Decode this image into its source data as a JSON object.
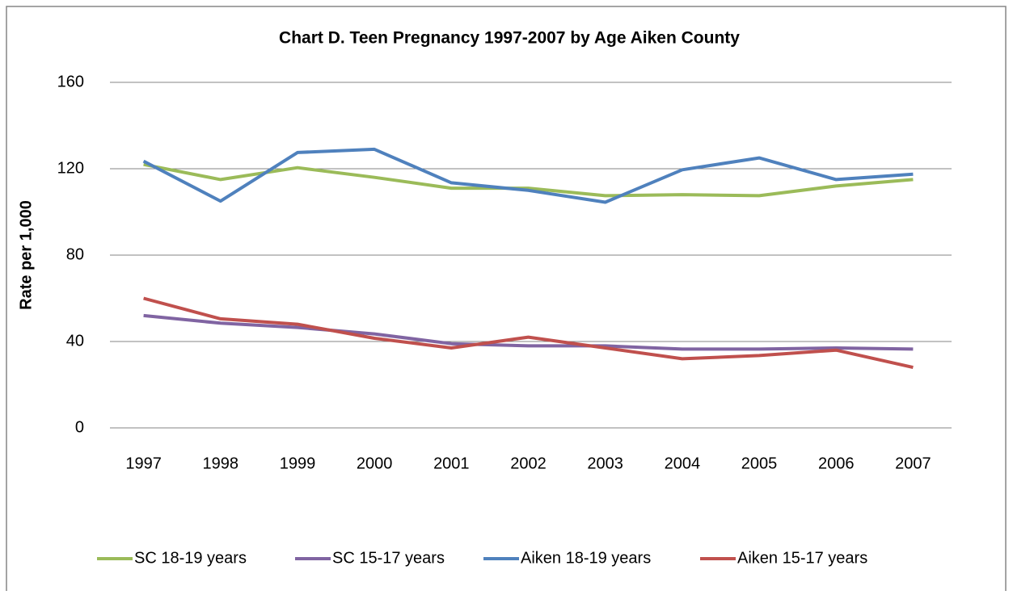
{
  "chart_data": {
    "type": "line",
    "title": "Chart D. Teen Pregnancy 1997-2007 by Age Aiken County",
    "y_label": "Rate per 1,000",
    "categories": [
      "1997",
      "1998",
      "1999",
      "2000",
      "2001",
      "2002",
      "2003",
      "2004",
      "2005",
      "2006",
      "2007"
    ],
    "series": [
      {
        "name": "SC 18-19 years",
        "color": "#9bbb59",
        "values": [
          122,
          115,
          120.5,
          116,
          111,
          111,
          107.5,
          108,
          107.5,
          112,
          115
        ]
      },
      {
        "name": "SC 15-17 years",
        "color": "#8064a2",
        "values": [
          52,
          48.5,
          46.5,
          43.5,
          39,
          38,
          38,
          36.5,
          36.5,
          37,
          36.5
        ]
      },
      {
        "name": "Aiken 18-19 years",
        "color": "#4f81bd",
        "values": [
          123.5,
          105,
          127.5,
          129,
          113.5,
          110,
          104.5,
          119.5,
          125,
          115,
          117.5
        ]
      },
      {
        "name": "Aiken 15-17 years",
        "color": "#c0504d",
        "values": [
          60,
          50.5,
          48,
          41.5,
          37,
          42,
          37,
          32,
          33.5,
          36,
          28
        ]
      }
    ],
    "ylim": [
      0,
      160
    ],
    "yticks": [
      0,
      40,
      80,
      120,
      160
    ],
    "grid": true,
    "legend": "bottom"
  }
}
